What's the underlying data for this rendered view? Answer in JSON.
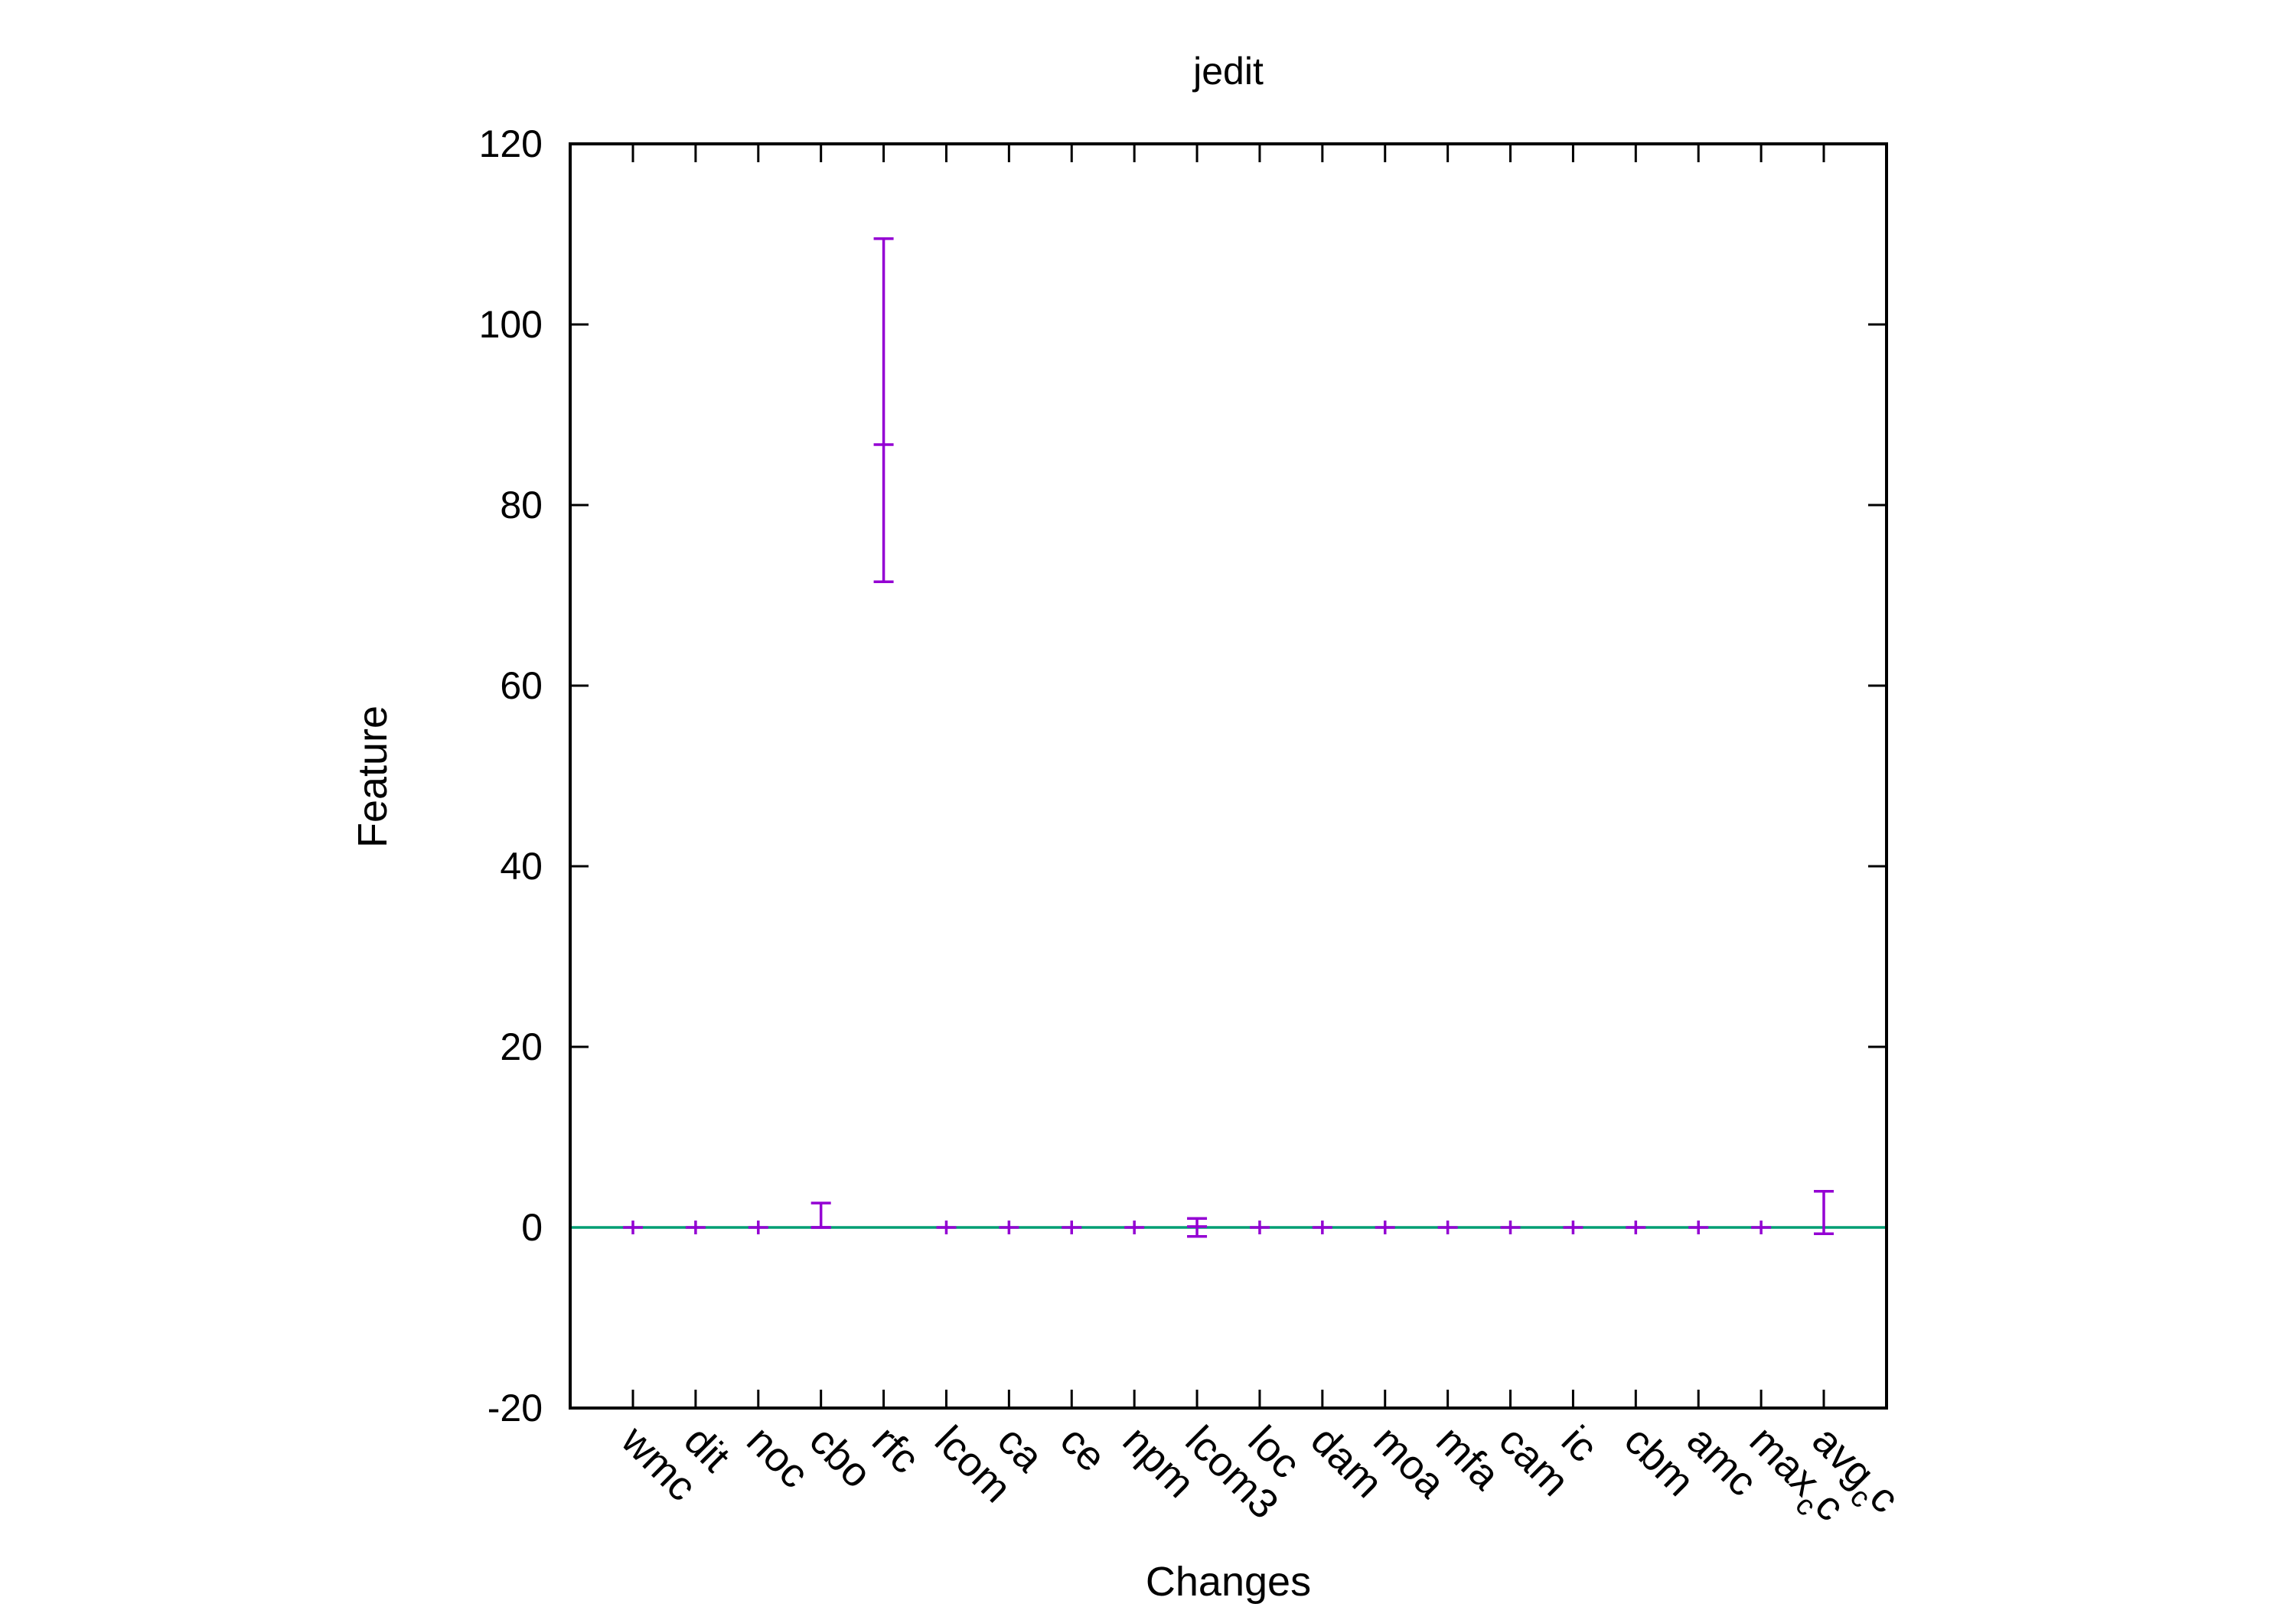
{
  "chart_data": {
    "type": "errorbar",
    "title": "jedit",
    "xlabel": "Changes",
    "ylabel": "Feature",
    "ylim": [
      -20,
      120
    ],
    "yticks": [
      -20,
      0,
      20,
      40,
      60,
      80,
      100,
      120
    ],
    "grid": false,
    "categories": [
      "wmc",
      "dit",
      "noc",
      "cbo",
      "rfc",
      "lcom",
      "ca",
      "ce",
      "npm",
      "lcom3",
      "loc",
      "dam",
      "moa",
      "mfa",
      "cam",
      "ic",
      "cbm",
      "amc",
      "max_cc",
      "avg_cc"
    ],
    "category_display": [
      {
        "base": "wmc",
        "sub": ""
      },
      {
        "base": "dit",
        "sub": ""
      },
      {
        "base": "noc",
        "sub": ""
      },
      {
        "base": "cbo",
        "sub": ""
      },
      {
        "base": "rfc",
        "sub": ""
      },
      {
        "base": "lcom",
        "sub": ""
      },
      {
        "base": "ca",
        "sub": ""
      },
      {
        "base": "ce",
        "sub": ""
      },
      {
        "base": "npm",
        "sub": ""
      },
      {
        "base": "lcom3",
        "sub": ""
      },
      {
        "base": "loc",
        "sub": ""
      },
      {
        "base": "dam",
        "sub": ""
      },
      {
        "base": "moa",
        "sub": ""
      },
      {
        "base": "mfa",
        "sub": ""
      },
      {
        "base": "cam",
        "sub": ""
      },
      {
        "base": "ic",
        "sub": ""
      },
      {
        "base": "cbm",
        "sub": ""
      },
      {
        "base": "amc",
        "sub": ""
      },
      {
        "base": "max",
        "sub": "c",
        "after": "c"
      },
      {
        "base": "avg",
        "sub": "c",
        "after": "c"
      }
    ],
    "series": [
      {
        "mid": [
          0,
          0,
          0,
          0,
          86.7,
          0,
          0,
          0,
          0,
          0.1,
          0,
          0,
          0,
          0,
          0,
          0,
          0,
          0,
          0,
          4.0
        ],
        "low": [
          0,
          0,
          0,
          0,
          71.5,
          0,
          0,
          0,
          0,
          -1.0,
          0,
          0,
          0,
          0,
          0,
          0,
          0,
          0,
          0,
          -0.7
        ],
        "high": [
          0,
          0,
          0,
          2.7,
          109.5,
          0,
          0,
          0,
          0,
          1.0,
          0,
          0,
          0,
          0,
          0,
          0,
          0,
          0,
          0,
          3.6
        ],
        "color": "#9400d3"
      }
    ],
    "reference_line": {
      "y": 0,
      "color": "#009e73"
    },
    "frame_color": "#000000"
  }
}
